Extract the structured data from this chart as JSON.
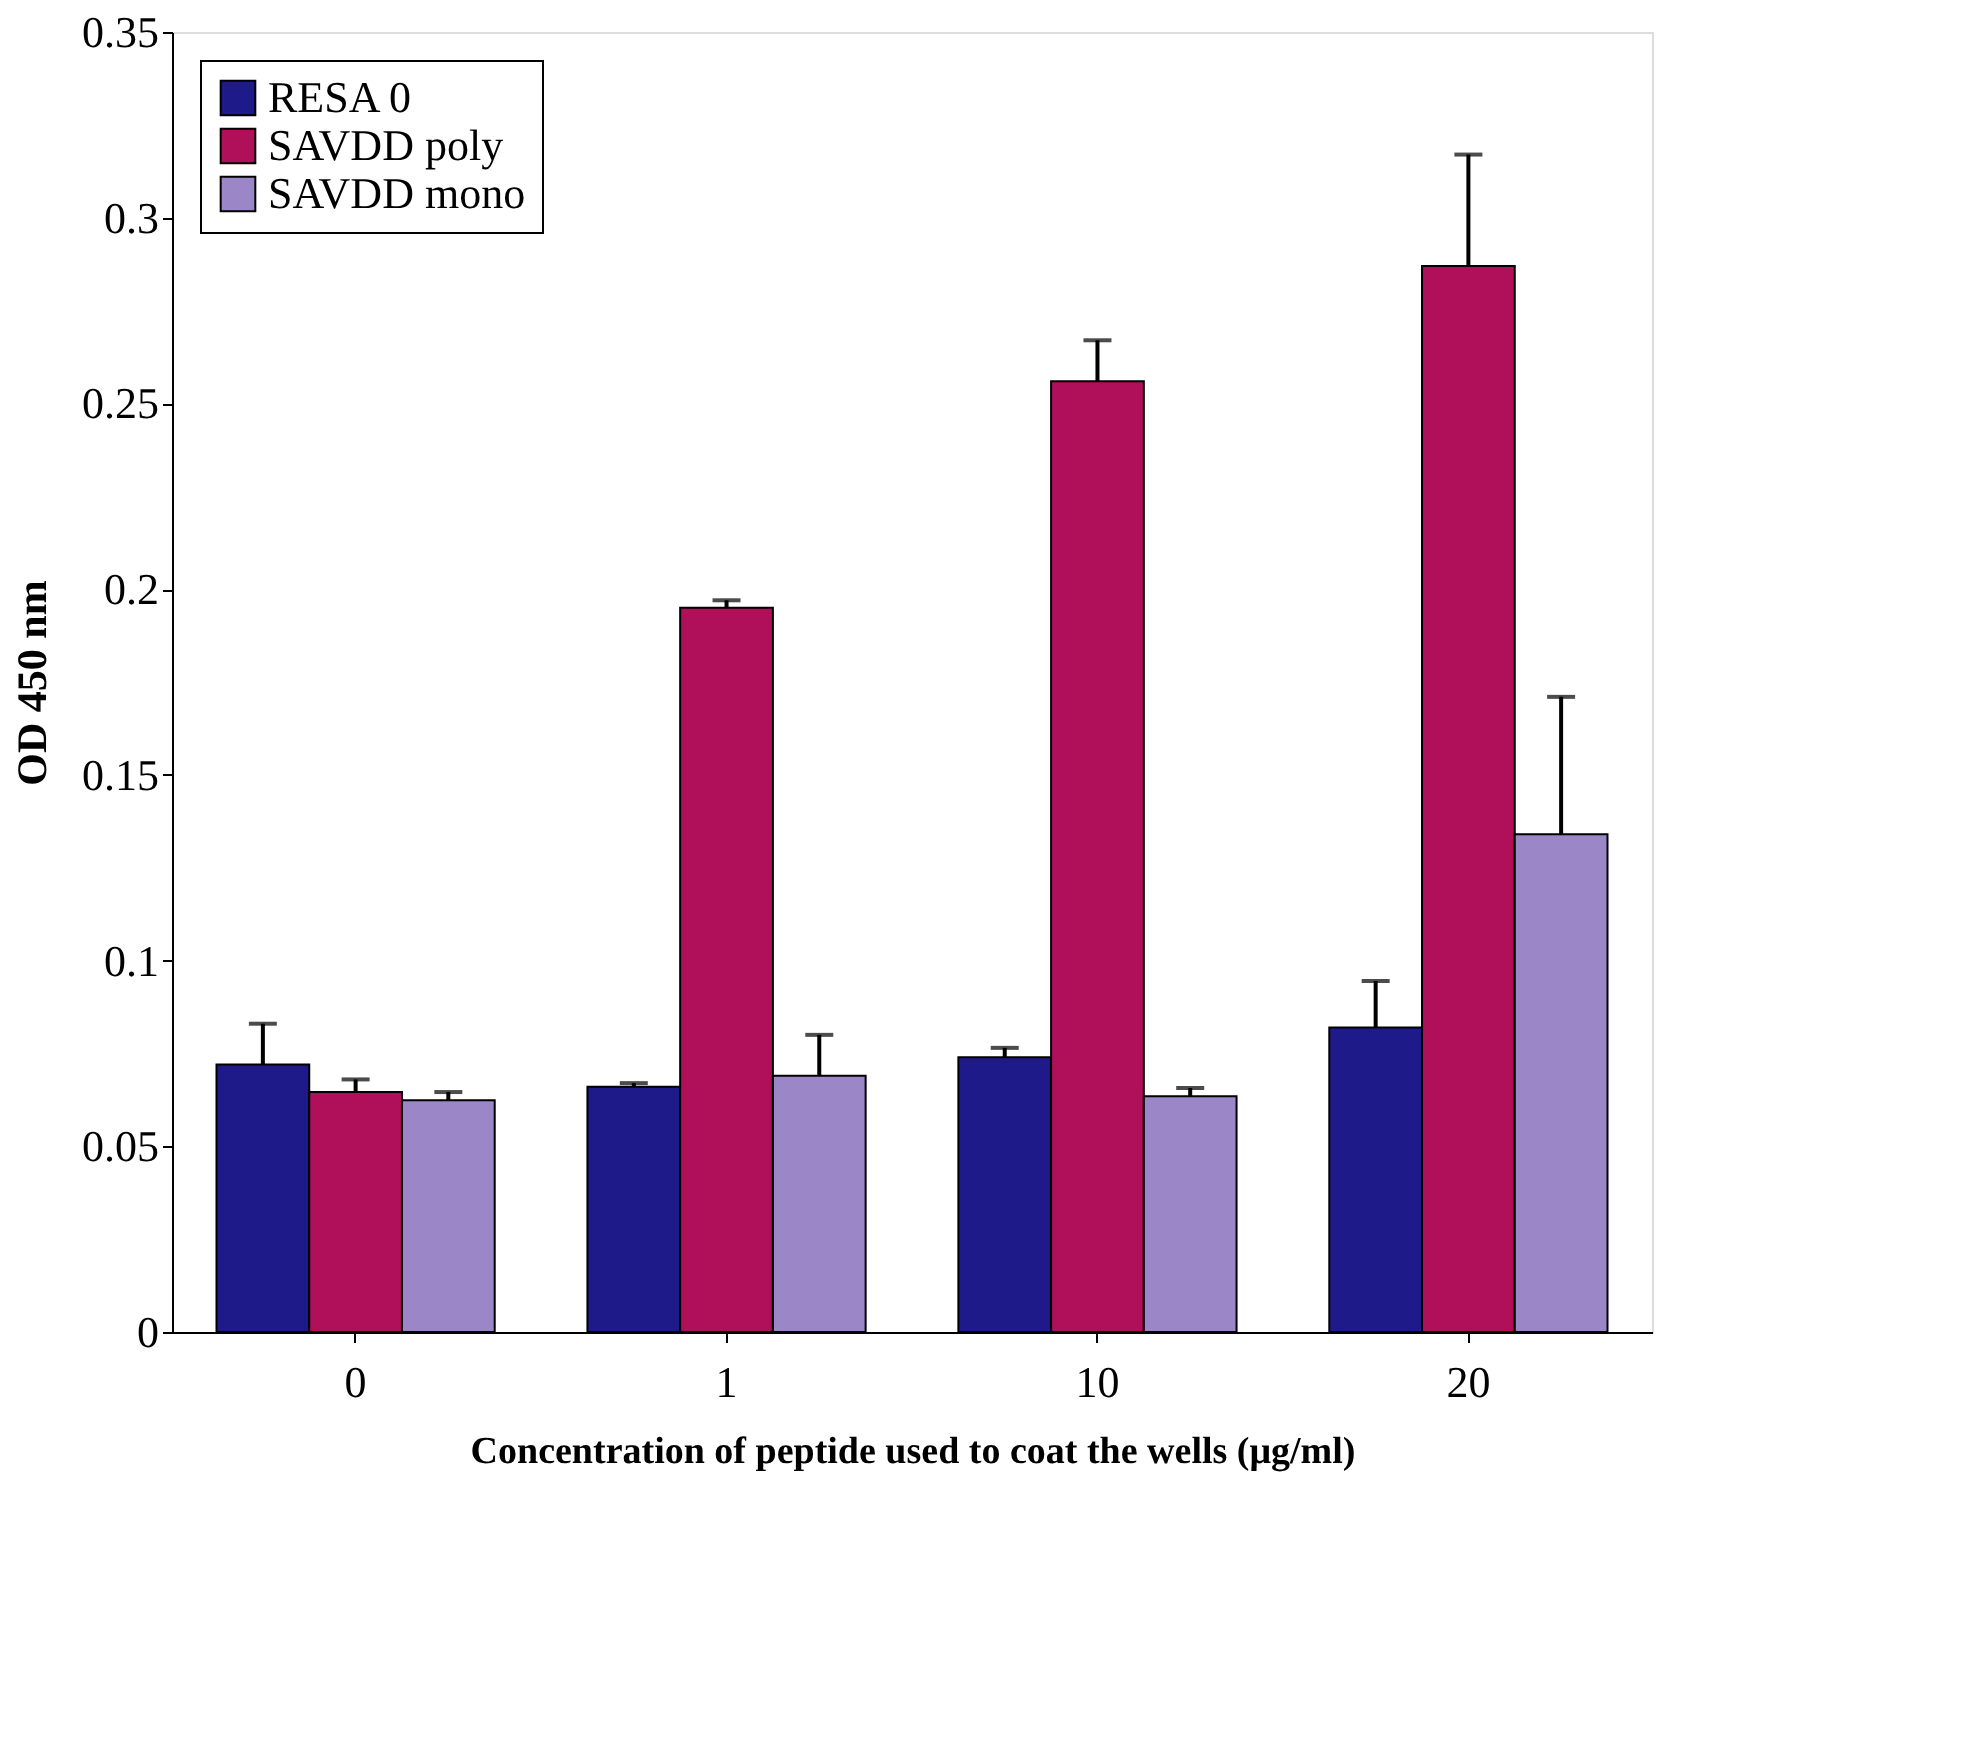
{
  "chart_data": {
    "type": "bar",
    "categories": [
      "0",
      "1",
      "10",
      "20"
    ],
    "xlabel": "Concentration of peptide used to coat the wells (μg/ml)",
    "ylabel": "OD 450 nm",
    "ylim": [
      0,
      0.35
    ],
    "yticks": [
      0,
      0.05,
      0.1,
      0.15,
      0.2,
      0.25,
      0.3,
      0.35
    ],
    "grid": false,
    "legend": "top left",
    "series": [
      {
        "name": "RESA 0",
        "color": "#1f1a8a",
        "values": [
          0.072,
          0.066,
          0.074,
          0.082
        ],
        "errors": [
          [
            0.072,
            0.083
          ],
          [
            0.066,
            0.067
          ],
          [
            0.074,
            0.0765
          ],
          [
            0.082,
            0.0945
          ]
        ]
      },
      {
        "name": "SAVDD poly",
        "color": "#b0105a",
        "values": [
          0.0646,
          0.195,
          0.256,
          0.287
        ],
        "errors": [
          [
            0.0646,
            0.068
          ],
          [
            0.195,
            0.197
          ],
          [
            0.256,
            0.267
          ],
          [
            0.287,
            0.317
          ]
        ]
      },
      {
        "name": "SAVDD mono",
        "color": "#9b86c8",
        "values": [
          0.0624,
          0.069,
          0.0635,
          0.134
        ],
        "errors": [
          [
            0.0624,
            0.0646
          ],
          [
            0.069,
            0.08
          ],
          [
            0.0635,
            0.0657
          ],
          [
            0.134,
            0.171
          ]
        ]
      }
    ]
  }
}
